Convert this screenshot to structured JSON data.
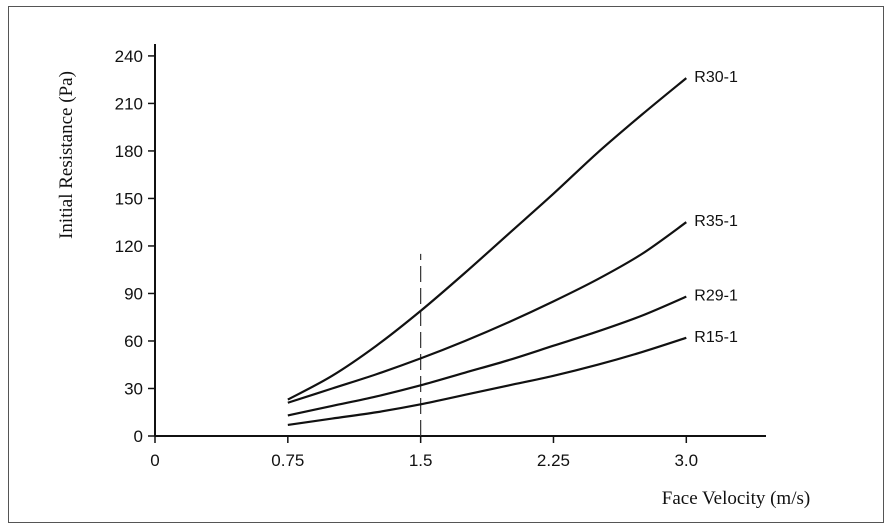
{
  "chart_data": {
    "type": "line",
    "xlabel": "Face Velocity (m/s)",
    "ylabel": "Initial Resistance (Pa)",
    "xlim": [
      0,
      3.45
    ],
    "ylim": [
      0,
      245
    ],
    "x_ticks": [
      0,
      0.75,
      1.5,
      2.25,
      3.0
    ],
    "x_tick_labels": [
      "0",
      "0.75",
      "1.5",
      "2.25",
      "3.0"
    ],
    "y_ticks": [
      0,
      30,
      60,
      90,
      120,
      150,
      180,
      210,
      240
    ],
    "y_tick_labels": [
      "0",
      "30",
      "60",
      "90",
      "120",
      "150",
      "180",
      "210",
      "240"
    ],
    "reference_line": {
      "x": 1.5,
      "y_range": [
        0,
        115
      ],
      "style": "dashed"
    },
    "series": [
      {
        "name": "R30-1",
        "x": [
          0.75,
          1.0,
          1.25,
          1.5,
          1.75,
          2.0,
          2.25,
          2.5,
          2.75,
          3.0
        ],
        "values": [
          23,
          38,
          57,
          79,
          103,
          128,
          153,
          179,
          203,
          226
        ]
      },
      {
        "name": "R35-1",
        "x": [
          0.75,
          1.0,
          1.25,
          1.5,
          1.75,
          2.0,
          2.25,
          2.5,
          2.75,
          3.0
        ],
        "values": [
          21,
          30,
          39,
          49,
          60,
          72,
          85,
          99,
          115,
          135
        ]
      },
      {
        "name": "R29-1",
        "x": [
          0.75,
          1.0,
          1.25,
          1.5,
          1.75,
          2.0,
          2.25,
          2.5,
          2.75,
          3.0
        ],
        "values": [
          13,
          19,
          25,
          32,
          40,
          48,
          57,
          66,
          76,
          88
        ]
      },
      {
        "name": "R15-1",
        "x": [
          0.75,
          1.0,
          1.25,
          1.5,
          1.75,
          2.0,
          2.25,
          2.5,
          2.75,
          3.0
        ],
        "values": [
          7,
          11,
          15,
          20,
          26,
          32,
          38,
          45,
          53,
          62
        ]
      }
    ],
    "grid": false
  }
}
